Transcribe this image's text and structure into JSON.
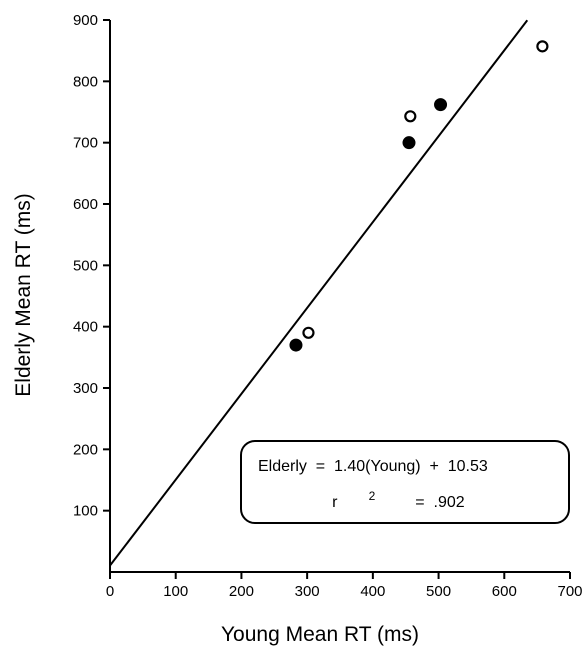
{
  "chart_data": {
    "type": "scatter",
    "title": "",
    "xlabel": "Young Mean RT (ms)",
    "ylabel": "Elderly Mean RT (ms)",
    "xlim": [
      0,
      700
    ],
    "ylim": [
      0,
      900
    ],
    "x_ticks": [
      "0",
      "100",
      "200",
      "300",
      "400",
      "500",
      "600",
      "700"
    ],
    "y_ticks": [
      "100",
      "200",
      "300",
      "400",
      "500",
      "600",
      "700",
      "800",
      "900"
    ],
    "grid": false,
    "series": [
      {
        "marker": "filled-circle",
        "color": "#000000",
        "points": [
          {
            "x": 283,
            "y": 370
          },
          {
            "x": 455,
            "y": 700
          },
          {
            "x": 503,
            "y": 762
          }
        ]
      },
      {
        "marker": "open-circle",
        "color": "#000000",
        "points": [
          {
            "x": 302,
            "y": 390
          },
          {
            "x": 457,
            "y": 743
          },
          {
            "x": 658,
            "y": 857
          }
        ]
      }
    ],
    "regression": {
      "slope": 1.4,
      "intercept": 10.53,
      "x_range": [
        0,
        635
      ]
    },
    "annotation": {
      "line1": "Elderly  =  1.40(Young)  +  10.53",
      "line2_prefix": "r",
      "line2_sup": "2",
      "line2_suffix": "  =  .902"
    }
  }
}
